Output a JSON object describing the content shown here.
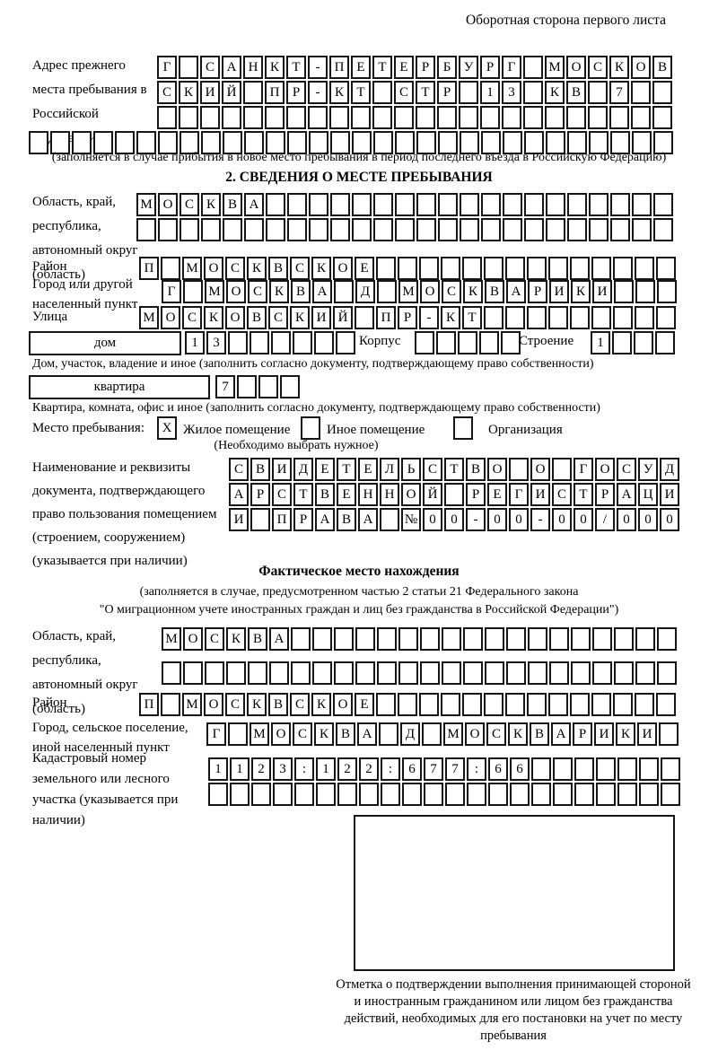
{
  "header": "Оборотная сторона первого листа",
  "prev": {
    "label": "Адрес прежнего места пребывания в Российской Федерации",
    "row1": {
      "text": "Г САНКТ-ПЕТЕРБУРГ МОСКОВ",
      "count": 24
    },
    "row2": {
      "text": "СКИЙ ПР-КТ СТР 13 КВ 7",
      "count": 24
    },
    "row3": {
      "text": "",
      "count": 24
    },
    "row4": {
      "text": "",
      "count": 30
    },
    "note": "(заполняется в случае прибытия в новое место пребывания в период последнего въезда в Российскую Федерацию)"
  },
  "sec2": {
    "title": "2. СВЕДЕНИЯ О МЕСТЕ ПРЕБЫВАНИЯ",
    "oblast": {
      "label": "Область, край, республика, автономный округ (область)",
      "row1": {
        "text": "МОСКВА",
        "count": 25
      },
      "row2": {
        "text": "",
        "count": 25
      }
    },
    "raion": {
      "label": "Район",
      "cells": {
        "text": "П МОСКВСКОЕ",
        "count": 25
      }
    },
    "gorod": {
      "label": "Город или другой населенный пункт",
      "cells": {
        "text": "Г МОСКВА Д МОСКВАРИКИ",
        "count": 24
      }
    },
    "ulitsa": {
      "label": "Улица",
      "cells": {
        "text": "МОСКОВСКИЙ ПР-КТ",
        "count": 25
      }
    },
    "dom": {
      "box_label": "дом",
      "cells": {
        "text": "13",
        "count": 8
      },
      "korpus_label": "Корпус",
      "korpus_cells": {
        "text": "",
        "count": 5
      },
      "stroenie_label": "Строение",
      "stroenie_cells": {
        "text": "1",
        "count": 4
      },
      "note": "Дом, участок, владение и иное (заполнить согласно документу, подтверждающему право собственности)"
    },
    "kvartira": {
      "box_label": "квартира",
      "cells": {
        "text": "7",
        "count": 4
      },
      "note": "Квартира, комната, офис и иное (заполнить согласно документу, подтверждающему право собственности)"
    },
    "mesto": {
      "label": "Место пребывания:",
      "zhiloe_mark": {
        "text": "X",
        "count": 1
      },
      "inoe_mark": {
        "text": "",
        "count": 1
      },
      "org_mark": {
        "text": "",
        "count": 1
      },
      "options": [
        "Жилое помещение",
        "Иное помещение",
        "Организация"
      ],
      "note": "(Необходимо выбрать нужное)"
    },
    "doc": {
      "label": "Наименование и реквизиты документа, подтверждающего право пользования помещением (строением, сооружением) (указывается при наличии)",
      "row1": {
        "text": "СВИДЕТЕЛЬСТВО О ГОСУД",
        "count": 21
      },
      "row2": {
        "text": "АРСТВЕННОЙ РЕГИСТРАЦИ",
        "count": 21
      },
      "row3": {
        "text": "И ПРАВА №00-00-00/000",
        "count": 21
      }
    }
  },
  "fact": {
    "title": "Фактическое место нахождения",
    "note1": "(заполняется в случае, предусмотренном частью 2 статьи 21 Федерального закона",
    "note2": "\"О миграционном учете иностранных граждан и лиц без гражданства в Российской Федерации\")",
    "oblast": {
      "label": "Область, край, республика, автономный округ (область)",
      "row1": {
        "text": "МОСКВА",
        "count": 24
      },
      "row2": {
        "text": "",
        "count": 24
      }
    },
    "raion": {
      "label": "Район",
      "cells": {
        "text": "П МОСКВСКОЕ",
        "count": 25
      }
    },
    "gorod": {
      "label": "Город, сельское поселение, иной населенный пункт",
      "cells": {
        "text": "Г МОСКВА Д МОСКВАРИКИ",
        "count": 22
      }
    },
    "kadastr": {
      "label": "Кадастровый номер земельного или лесного участка (указывается при наличии)",
      "row1": {
        "text": "1123:122:677:66",
        "count": 22
      },
      "row2": {
        "text": "",
        "count": 22
      }
    }
  },
  "stamp": {
    "caption": "Отметка о подтверждении выполнения принимающей стороной и иностранным гражданином или лицом без гражданства действий, необходимых для его постановки на учет по месту пребывания"
  }
}
